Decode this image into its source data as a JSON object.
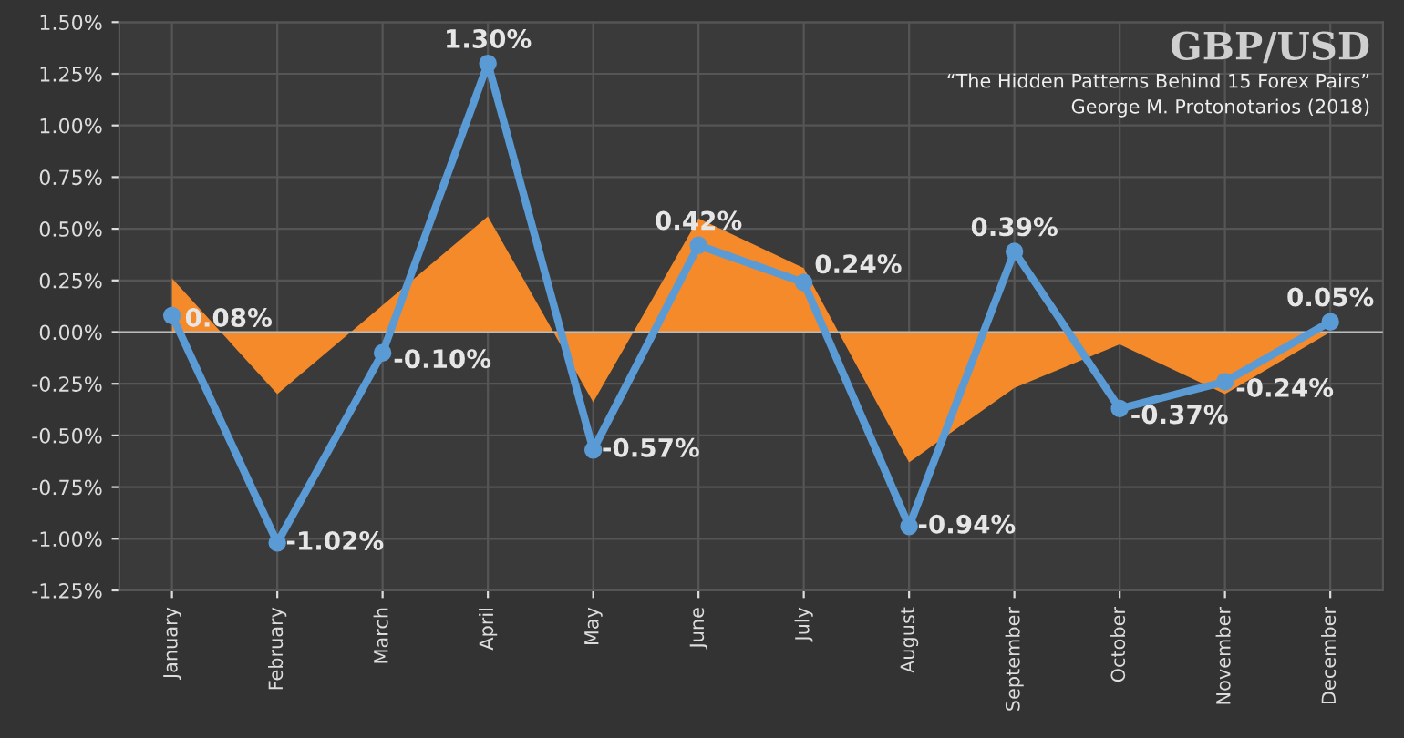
{
  "chart_data": {
    "type": "line",
    "title": "GBP/USD",
    "annotations": [
      "“The Hidden Patterns Behind 15 Forex Pairs”",
      "George M. Protonotarios (2018)"
    ],
    "categories": [
      "January",
      "February",
      "March",
      "April",
      "May",
      "June",
      "July",
      "August",
      "September",
      "October",
      "November",
      "December"
    ],
    "series": [
      {
        "type": "area",
        "color": "#f58a2a",
        "values": [
          0.26,
          -0.3,
          0.13,
          0.56,
          -0.34,
          0.55,
          0.31,
          -0.63,
          -0.27,
          -0.06,
          -0.3,
          0.0
        ]
      },
      {
        "color": "#5b9bd5",
        "marker": "circle",
        "values": [
          0.08,
          -1.02,
          -0.1,
          1.3,
          -0.57,
          0.42,
          0.24,
          -0.94,
          0.39,
          -0.37,
          -0.24,
          0.05
        ],
        "value_labels": [
          "0.08%",
          "-1.02%",
          "-0.10%",
          "1.30%",
          "-0.57%",
          "0.42%",
          "0.24%",
          "-0.94%",
          "0.39%",
          "-0.37%",
          "-0.24%",
          "0.05%"
        ]
      }
    ],
    "ylim": [
      -1.25,
      1.5
    ],
    "yticks": [
      {
        "value": -1.25,
        "label": "-1.25%"
      },
      {
        "value": -1.0,
        "label": "-1.00%"
      },
      {
        "value": -0.75,
        "label": "-0.75%"
      },
      {
        "value": -0.5,
        "label": "-0.50%"
      },
      {
        "value": -0.25,
        "label": "-0.25%"
      },
      {
        "value": 0,
        "label": "0.00%"
      },
      {
        "value": 0.25,
        "label": "0.25%"
      },
      {
        "value": 0.5,
        "label": "0.50%"
      },
      {
        "value": 0.75,
        "label": "0.75%"
      },
      {
        "value": 1.0,
        "label": "1.00%"
      },
      {
        "value": 1.25,
        "label": "1.25%"
      },
      {
        "value": 1.5,
        "label": "1.50%"
      }
    ],
    "grid": true
  }
}
